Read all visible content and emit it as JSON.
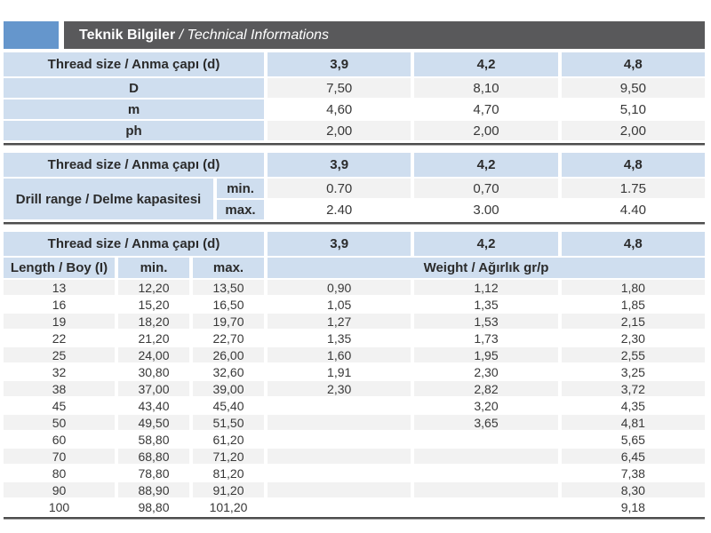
{
  "header": {
    "title": "Teknik Bilgiler",
    "subtitle": " / Technical Informations"
  },
  "colors": {
    "accent_blue": "#6596cc",
    "bar_gray": "#59595b",
    "cell_blue": "#cfdeef",
    "stripe_gray": "#f2f2f2",
    "rule_dark": "#4c4c4c"
  },
  "dimensions_table": {
    "thread_size_label": "Thread size / Anma çapı (d)",
    "sizes": [
      "3,9",
      "4,2",
      "4,8"
    ],
    "rows": [
      {
        "label": "D",
        "v1": "7,50",
        "v2": "8,10",
        "v3": "9,50"
      },
      {
        "label": "m",
        "v1": "4,60",
        "v2": "4,70",
        "v3": "5,10"
      },
      {
        "label": "ph",
        "v1": "2,00",
        "v2": "2,00",
        "v3": "2,00"
      }
    ]
  },
  "drill_table": {
    "thread_size_label": "Thread size / Anma çapı (d)",
    "sizes": [
      "3,9",
      "4,2",
      "4,8"
    ],
    "group_label": "Drill range / Delme kapasitesi",
    "rows": [
      {
        "label": "min.",
        "v1": "0.70",
        "v2": "0,70",
        "v3": "1.75"
      },
      {
        "label": "max.",
        "v1": "2.40",
        "v2": "3.00",
        "v3": "4.40"
      }
    ]
  },
  "length_table": {
    "thread_size_label": "Thread size / Anma çapı (d)",
    "sizes": [
      "3,9",
      "4,2",
      "4,8"
    ],
    "length_label": "Length / Boy (I)",
    "min_label": "min.",
    "max_label": "max.",
    "weight_label": "Weight / Ağırlık gr/p",
    "rows": [
      {
        "length": "13",
        "min": "12,20",
        "max": "13,50",
        "w1": "0,90",
        "w2": "1,12",
        "w3": "1,80"
      },
      {
        "length": "16",
        "min": "15,20",
        "max": "16,50",
        "w1": "1,05",
        "w2": "1,35",
        "w3": "1,85"
      },
      {
        "length": "19",
        "min": "18,20",
        "max": "19,70",
        "w1": "1,27",
        "w2": "1,53",
        "w3": "2,15"
      },
      {
        "length": "22",
        "min": "21,20",
        "max": "22,70",
        "w1": "1,35",
        "w2": "1,73",
        "w3": "2,30"
      },
      {
        "length": "25",
        "min": "24,00",
        "max": "26,00",
        "w1": "1,60",
        "w2": "1,95",
        "w3": "2,55"
      },
      {
        "length": "32",
        "min": "30,80",
        "max": "32,60",
        "w1": "1,91",
        "w2": "2,30",
        "w3": "3,25"
      },
      {
        "length": "38",
        "min": "37,00",
        "max": "39,00",
        "w1": "2,30",
        "w2": "2,82",
        "w3": "3,72"
      },
      {
        "length": "45",
        "min": "43,40",
        "max": "45,40",
        "w1": "",
        "w2": "3,20",
        "w3": "4,35"
      },
      {
        "length": "50",
        "min": "49,50",
        "max": "51,50",
        "w1": "",
        "w2": "3,65",
        "w3": "4,81"
      },
      {
        "length": "60",
        "min": "58,80",
        "max": "61,20",
        "w1": "",
        "w2": "",
        "w3": "5,65"
      },
      {
        "length": "70",
        "min": "68,80",
        "max": "71,20",
        "w1": "",
        "w2": "",
        "w3": "6,45"
      },
      {
        "length": "80",
        "min": "78,80",
        "max": "81,20",
        "w1": "",
        "w2": "",
        "w3": "7,38"
      },
      {
        "length": "90",
        "min": "88,90",
        "max": "91,20",
        "w1": "",
        "w2": "",
        "w3": "8,30"
      },
      {
        "length": "100",
        "min": "98,80",
        "max": "101,20",
        "w1": "",
        "w2": "",
        "w3": "9,18"
      }
    ]
  }
}
